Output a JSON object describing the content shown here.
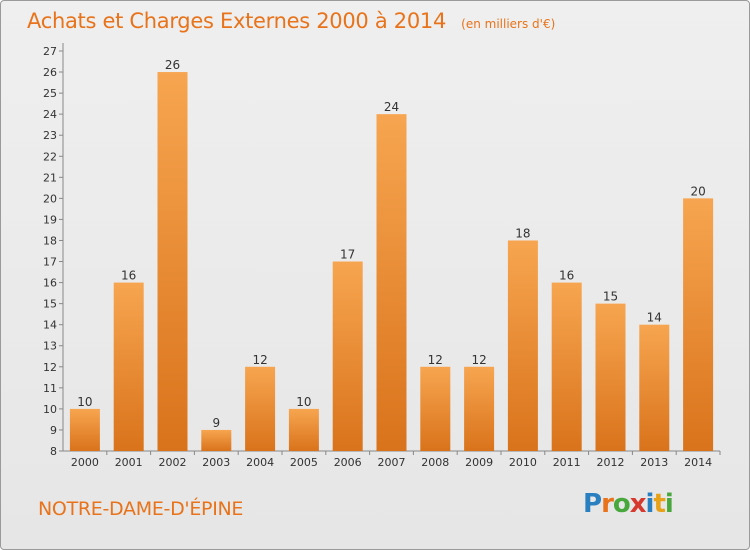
{
  "header": {
    "title": "Achats et Charges Externes 2000 à 2014",
    "subtitle": "(en milliers d'€)"
  },
  "footer": {
    "commune": "NOTRE-DAME-D'ÉPINE",
    "logo_letters": [
      "P",
      "r",
      "o",
      "x",
      "i",
      "t",
      "i"
    ],
    "logo_colors": [
      "#2a7fc1",
      "#e8731a",
      "#48a83c",
      "#d63a2f",
      "#2a7fc1",
      "#e8a21a",
      "#48a83c"
    ]
  },
  "chart_data": {
    "type": "bar",
    "categories": [
      "2000",
      "2001",
      "2002",
      "2003",
      "2004",
      "2005",
      "2006",
      "2007",
      "2008",
      "2009",
      "2010",
      "2011",
      "2012",
      "2013",
      "2014"
    ],
    "values": [
      10,
      16,
      26,
      9,
      12,
      10,
      17,
      24,
      12,
      12,
      18,
      16,
      15,
      14,
      20
    ],
    "title": "Achats et Charges Externes 2000 à 2014",
    "subtitle": "(en milliers d'€)",
    "xlabel": "",
    "ylabel": "",
    "ylim": [
      8,
      27
    ],
    "yticks": [
      8,
      9,
      10,
      11,
      12,
      13,
      14,
      15,
      16,
      17,
      18,
      19,
      20,
      21,
      22,
      23,
      24,
      25,
      26,
      27
    ],
    "grid": false,
    "legend": "none",
    "bar_color_light": "#f7a550",
    "bar_color_dark": "#d9731b"
  }
}
